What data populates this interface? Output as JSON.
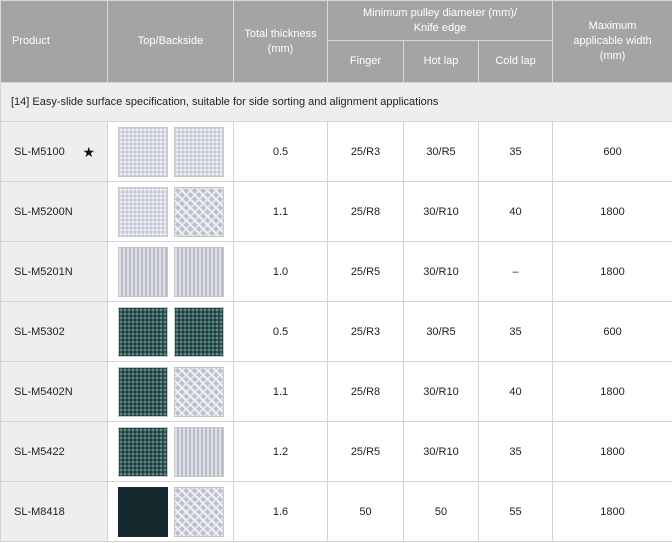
{
  "headers": {
    "product": "Product",
    "top_backside": "Top/Backside",
    "total_thickness": "Total thickness\n(mm)",
    "min_pulley": "Minimum pulley diameter (mm)/\nKnife edge",
    "finger": "Finger",
    "hot_lap": "Hot lap",
    "cold_lap": "Cold lap",
    "max_width": "Maximum\napplicable width\n(mm)"
  },
  "section_title": "[14] Easy-slide surface specification, suitable for side sorting and alignment applications",
  "rows": [
    {
      "product": "SL-M5100",
      "star": "★",
      "top": "pat-light",
      "back": "pat-light",
      "thickness": "0.5",
      "finger": "25/R3",
      "hot_lap": "30/R5",
      "cold_lap": "35",
      "width": "600"
    },
    {
      "product": "SL-M5200N",
      "star": "",
      "top": "pat-light",
      "back": "pat-wave",
      "thickness": "1.1",
      "finger": "25/R8",
      "hot_lap": "30/R10",
      "cold_lap": "40",
      "width": "1800"
    },
    {
      "product": "SL-M5201N",
      "star": "",
      "top": "pat-woven",
      "back": "pat-woven",
      "thickness": "1.0",
      "finger": "25/R5",
      "hot_lap": "30/R10",
      "cold_lap": "–",
      "width": "1800"
    },
    {
      "product": "SL-M5302",
      "star": "",
      "top": "pat-dark",
      "back": "pat-dark",
      "thickness": "0.5",
      "finger": "25/R3",
      "hot_lap": "30/R5",
      "cold_lap": "35",
      "width": "600"
    },
    {
      "product": "SL-M5402N",
      "star": "",
      "top": "pat-dark",
      "back": "pat-wave",
      "thickness": "1.1",
      "finger": "25/R8",
      "hot_lap": "30/R10",
      "cold_lap": "40",
      "width": "1800"
    },
    {
      "product": "SL-M5422",
      "star": "",
      "top": "pat-dark",
      "back": "pat-woven",
      "thickness": "1.2",
      "finger": "25/R5",
      "hot_lap": "30/R10",
      "cold_lap": "35",
      "width": "1800"
    },
    {
      "product": "SL-M8418",
      "star": "",
      "top": "pat-solid-dark",
      "back": "pat-wave",
      "thickness": "1.6",
      "finger": "50",
      "hot_lap": "50",
      "cold_lap": "55",
      "width": "1800"
    }
  ]
}
